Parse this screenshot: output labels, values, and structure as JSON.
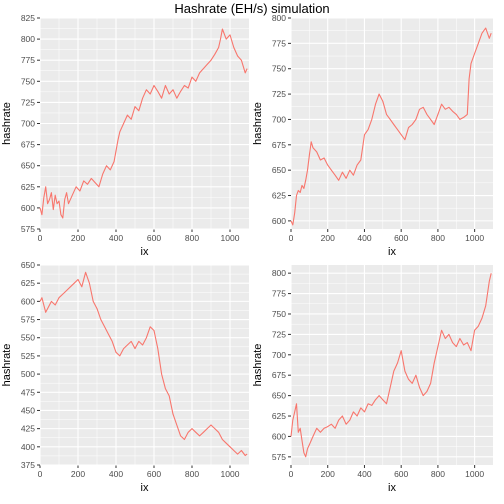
{
  "title": "Hashrate (EH/s) simulation",
  "colors": {
    "line": "#F8766D",
    "panel": "#EBEBEB",
    "grid": "#FFFFFF"
  },
  "chart_data": [
    {
      "type": "line",
      "xlabel": "ix",
      "ylabel": "hashrate",
      "xlim": [
        0,
        1100
      ],
      "ylim": [
        575,
        825
      ],
      "xticks": [
        0,
        200,
        400,
        600,
        800,
        1000
      ],
      "yticks": [
        575,
        600,
        625,
        650,
        675,
        700,
        725,
        750,
        775,
        800,
        825
      ],
      "grid": true,
      "series": [
        {
          "x": [
            0,
            10,
            20,
            30,
            40,
            50,
            60,
            70,
            80,
            90,
            100,
            110,
            120,
            130,
            140,
            150,
            170,
            190,
            210,
            230,
            250,
            270,
            290,
            310,
            330,
            350,
            370,
            390,
            410,
            420,
            440,
            460,
            480,
            500,
            520,
            540,
            560,
            580,
            600,
            620,
            640,
            660,
            680,
            700,
            720,
            740,
            760,
            780,
            800,
            820,
            840,
            860,
            880,
            900,
            920,
            940,
            950,
            960,
            980,
            1000,
            1020,
            1040,
            1060,
            1080,
            1090
          ],
          "y": [
            600,
            592,
            612,
            625,
            605,
            610,
            618,
            598,
            615,
            605,
            608,
            592,
            588,
            610,
            618,
            605,
            615,
            625,
            620,
            632,
            628,
            635,
            630,
            625,
            640,
            650,
            645,
            655,
            680,
            690,
            700,
            710,
            705,
            720,
            715,
            730,
            740,
            735,
            745,
            738,
            730,
            745,
            735,
            740,
            730,
            738,
            745,
            742,
            755,
            750,
            760,
            765,
            770,
            775,
            782,
            790,
            800,
            812,
            800,
            805,
            790,
            780,
            775,
            760,
            765
          ]
        }
      ]
    },
    {
      "type": "line",
      "xlabel": "ix",
      "ylabel": "hashrate",
      "xlim": [
        0,
        1100
      ],
      "ylim": [
        592,
        800
      ],
      "xticks": [
        0,
        200,
        400,
        600,
        800,
        1000
      ],
      "yticks": [
        600,
        625,
        650,
        675,
        700,
        725,
        750,
        775,
        800
      ],
      "grid": true,
      "series": [
        {
          "x": [
            0,
            10,
            20,
            30,
            40,
            50,
            60,
            70,
            80,
            90,
            100,
            110,
            120,
            130,
            140,
            160,
            180,
            200,
            220,
            240,
            260,
            280,
            300,
            320,
            340,
            360,
            380,
            400,
            420,
            440,
            460,
            480,
            500,
            520,
            540,
            560,
            580,
            600,
            620,
            640,
            660,
            680,
            700,
            720,
            740,
            760,
            780,
            800,
            820,
            840,
            860,
            880,
            900,
            920,
            940,
            960,
            970,
            980,
            1000,
            1020,
            1040,
            1060,
            1080,
            1090
          ],
          "y": [
            600,
            596,
            608,
            625,
            630,
            628,
            635,
            632,
            640,
            650,
            665,
            678,
            672,
            670,
            668,
            660,
            662,
            655,
            650,
            645,
            640,
            648,
            642,
            650,
            645,
            655,
            660,
            685,
            690,
            700,
            715,
            725,
            718,
            705,
            700,
            695,
            690,
            685,
            680,
            692,
            695,
            700,
            710,
            712,
            705,
            700,
            695,
            705,
            715,
            710,
            712,
            708,
            705,
            700,
            702,
            705,
            740,
            755,
            765,
            775,
            785,
            790,
            780,
            785
          ]
        }
      ]
    },
    {
      "type": "line",
      "xlabel": "ix",
      "ylabel": "hashrate",
      "xlim": [
        0,
        1100
      ],
      "ylim": [
        375,
        650
      ],
      "xticks": [
        0,
        200,
        400,
        600,
        800,
        1000
      ],
      "yticks": [
        375,
        400,
        425,
        450,
        475,
        500,
        525,
        550,
        575,
        600,
        625,
        650
      ],
      "grid": true,
      "series": [
        {
          "x": [
            0,
            10,
            20,
            30,
            40,
            60,
            80,
            100,
            120,
            140,
            160,
            180,
            200,
            220,
            240,
            260,
            280,
            300,
            320,
            340,
            360,
            380,
            400,
            420,
            440,
            460,
            480,
            500,
            520,
            540,
            560,
            580,
            600,
            620,
            640,
            660,
            680,
            700,
            720,
            740,
            760,
            780,
            800,
            820,
            840,
            860,
            880,
            900,
            920,
            940,
            960,
            980,
            1000,
            1020,
            1040,
            1060,
            1080,
            1090
          ],
          "y": [
            600,
            605,
            595,
            585,
            590,
            600,
            595,
            605,
            610,
            615,
            620,
            625,
            630,
            620,
            640,
            625,
            600,
            590,
            575,
            565,
            555,
            545,
            530,
            525,
            535,
            540,
            545,
            535,
            545,
            540,
            550,
            565,
            560,
            535,
            500,
            480,
            470,
            445,
            430,
            415,
            410,
            420,
            425,
            420,
            415,
            420,
            425,
            430,
            425,
            420,
            410,
            405,
            400,
            395,
            390,
            395,
            388,
            390
          ]
        }
      ]
    },
    {
      "type": "line",
      "xlabel": "ix",
      "ylabel": "hashrate",
      "xlim": [
        0,
        1100
      ],
      "ylim": [
        565,
        810
      ],
      "xticks": [
        0,
        200,
        400,
        600,
        800,
        1000
      ],
      "yticks": [
        575,
        600,
        625,
        650,
        675,
        700,
        725,
        750,
        775,
        800
      ],
      "grid": true,
      "series": [
        {
          "x": [
            0,
            10,
            20,
            30,
            40,
            50,
            60,
            70,
            80,
            90,
            100,
            120,
            140,
            160,
            180,
            200,
            220,
            240,
            260,
            280,
            300,
            320,
            340,
            360,
            380,
            400,
            420,
            440,
            460,
            480,
            500,
            520,
            540,
            560,
            580,
            600,
            620,
            640,
            660,
            680,
            700,
            720,
            740,
            760,
            780,
            800,
            820,
            840,
            860,
            880,
            900,
            920,
            940,
            960,
            980,
            1000,
            1020,
            1040,
            1060,
            1080,
            1090
          ],
          "y": [
            600,
            620,
            630,
            640,
            605,
            610,
            595,
            580,
            575,
            585,
            590,
            600,
            610,
            605,
            610,
            612,
            615,
            610,
            620,
            625,
            615,
            620,
            630,
            625,
            635,
            630,
            640,
            638,
            645,
            650,
            645,
            640,
            660,
            680,
            690,
            705,
            680,
            670,
            665,
            675,
            660,
            650,
            655,
            665,
            690,
            710,
            730,
            720,
            725,
            715,
            710,
            720,
            712,
            715,
            705,
            730,
            735,
            745,
            760,
            790,
            800
          ]
        }
      ]
    }
  ]
}
